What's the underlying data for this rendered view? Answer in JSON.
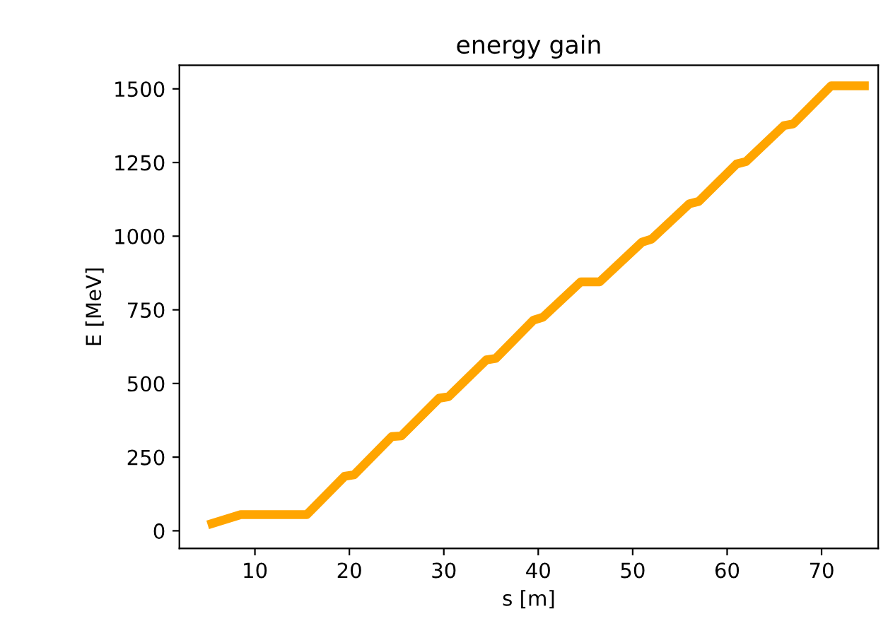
{
  "chart_data": {
    "type": "line",
    "title": "energy gain",
    "xlabel": "s [m]",
    "ylabel": "E [MeV]",
    "x": [
      5,
      8.5,
      15.5,
      19.5,
      20.5,
      24.5,
      25.5,
      29.5,
      30.5,
      34.5,
      35.5,
      39.5,
      40.5,
      44.5,
      46.5,
      51,
      52,
      56,
      57,
      61,
      62,
      66,
      67,
      71,
      75
    ],
    "series": [
      {
        "color": "#ffa500",
        "values": [
          20,
          55,
          55,
          185,
          190,
          320,
          322,
          450,
          455,
          580,
          585,
          715,
          725,
          845,
          845,
          980,
          990,
          1110,
          1118,
          1245,
          1253,
          1375,
          1381,
          1510,
          1510
        ]
      }
    ],
    "xlim": [
      2,
      76
    ],
    "ylim": [
      -60,
      1580
    ],
    "xticks": [
      10,
      20,
      30,
      40,
      50,
      60,
      70
    ],
    "yticks": [
      0,
      250,
      500,
      750,
      1000,
      1250,
      1500
    ],
    "grid": false,
    "line_style": "solid",
    "marker": "none"
  }
}
